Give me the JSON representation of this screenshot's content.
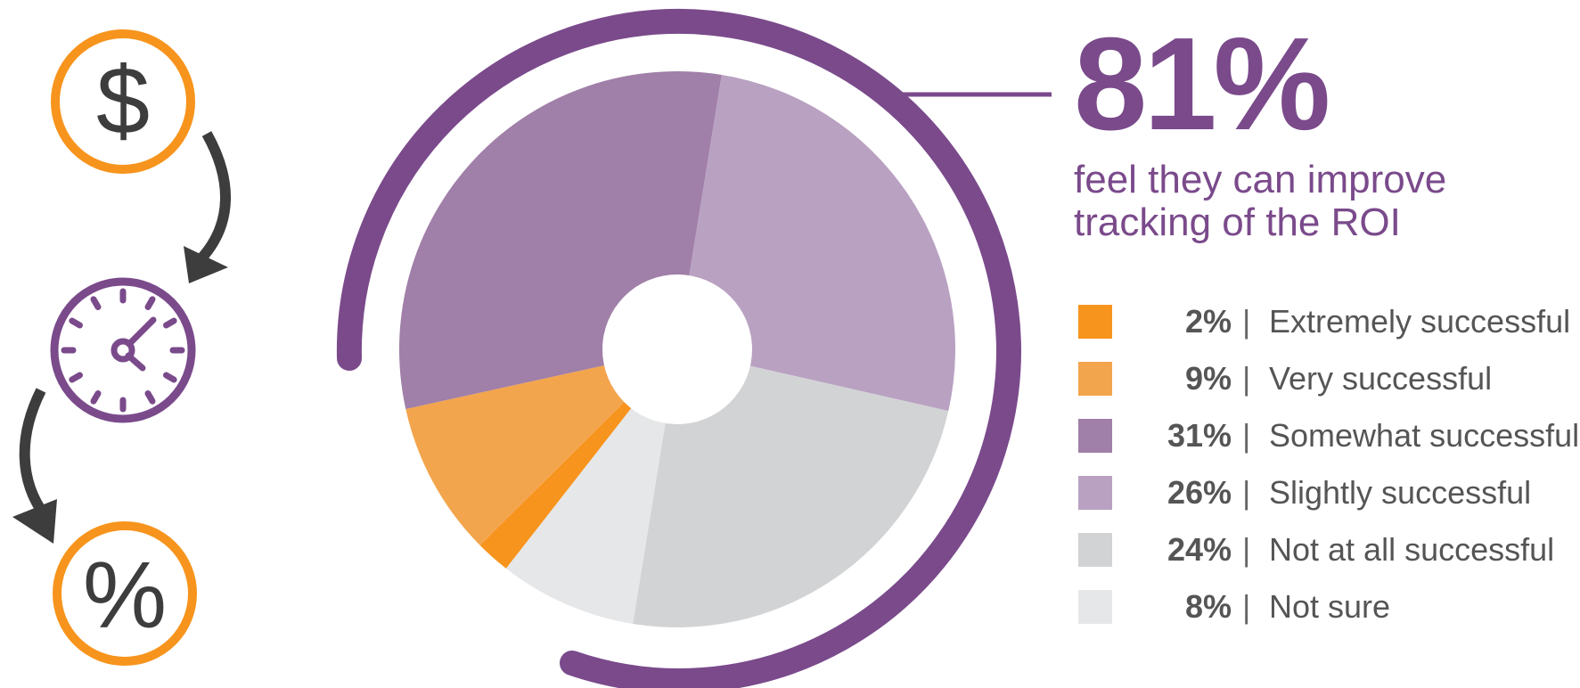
{
  "stat": {
    "value": "81%",
    "line1": "feel they can improve",
    "line2": "tracking of the ROI"
  },
  "icons": {
    "dollar": "$",
    "percent": "%"
  },
  "colors": {
    "purple_dark": "#7a4a8b",
    "orange": "#f7941d",
    "arrow": "#3d3d3d"
  },
  "chart_data": {
    "type": "pie",
    "slices": [
      {
        "label": "Extremely successful",
        "pct_label": "2%",
        "value": 2,
        "color": "#f7941d"
      },
      {
        "label": "Very successful",
        "pct_label": "9%",
        "value": 9,
        "color": "#f3a54d"
      },
      {
        "label": "Somewhat successful",
        "pct_label": "31%",
        "value": 31,
        "color": "#a07fa8"
      },
      {
        "label": "Slightly successful",
        "pct_label": "26%",
        "value": 26,
        "color": "#b9a1c2"
      },
      {
        "label": "Not at all successful",
        "pct_label": "24%",
        "value": 24,
        "color": "#d2d3d5"
      },
      {
        "label": "Not sure",
        "pct_label": "8%",
        "value": 8,
        "color": "#e6e7e8"
      }
    ]
  }
}
